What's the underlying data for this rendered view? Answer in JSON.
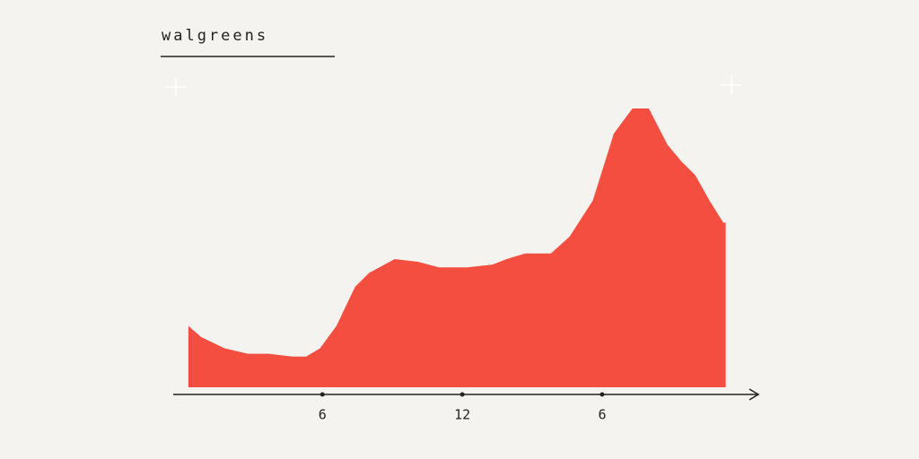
{
  "chart_data": {
    "type": "area",
    "title": "walgreens",
    "color": "#f44e40",
    "x": [
      0.25,
      0.8,
      1.8,
      2.8,
      3.7,
      4.7,
      5.3,
      5.9,
      6.6,
      7.4,
      8.0,
      9.1,
      10.1,
      11.0,
      12.2,
      13.3,
      13.9,
      14.7,
      15.8,
      16.6,
      17.6,
      18.5,
      19.3,
      20.0,
      20.8,
      21.4,
      22.0,
      22.6,
      23.2,
      23.3
    ],
    "values": [
      22,
      18,
      14,
      12,
      12,
      11,
      11,
      14,
      22,
      36,
      41,
      46,
      45,
      43,
      43,
      44,
      46,
      48,
      48,
      54,
      67,
      91,
      100,
      100,
      87,
      81,
      76,
      67,
      59,
      59
    ],
    "xlim": [
      -0.4,
      24.7
    ],
    "ylim": [
      0,
      100
    ],
    "xticks": [
      6,
      12,
      {
        "value": 18,
        "label": "6"
      }
    ]
  }
}
